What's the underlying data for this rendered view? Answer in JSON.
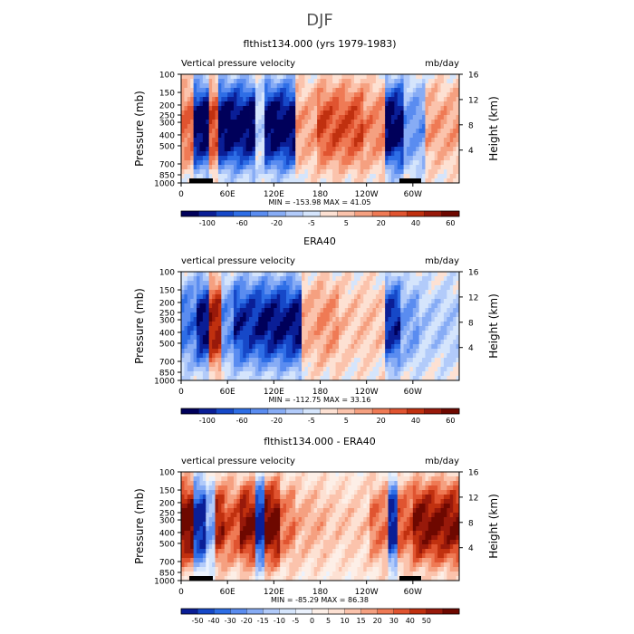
{
  "figure": {
    "title": "DJF"
  },
  "colors": {
    "palette_main": [
      "#00005a",
      "#0a1e96",
      "#1648c8",
      "#2e6ee6",
      "#5a8cf0",
      "#87acf5",
      "#b2cbfa",
      "#d5e5fc",
      "#fde1d3",
      "#fbc3ac",
      "#f5a080",
      "#ef7a55",
      "#e05430",
      "#c0300f",
      "#98190a",
      "#6e0800"
    ],
    "palette_diff": [
      "#0a1e96",
      "#1648c8",
      "#2e6ee6",
      "#5a8cf0",
      "#87acf5",
      "#b2cbfa",
      "#d5e5fc",
      "#ebf2fd",
      "#fdefe7",
      "#fde1d3",
      "#fbc3ac",
      "#f5a080",
      "#ef7a55",
      "#e05430",
      "#c0300f",
      "#98190a",
      "#6e0800"
    ]
  },
  "chart_data": [
    {
      "type": "heatmap",
      "title": "flthist134.000 (yrs 1979-1983)",
      "variable_label": "Vertical pressure velocity",
      "units_label": "mb/day",
      "ylabel": "Pressure (mb)",
      "ylabel_right": "Height (km)",
      "pressure_ticks": [
        "100",
        "150",
        "200",
        "250",
        "300",
        "400",
        "500",
        "700",
        "850",
        "1000"
      ],
      "height_ticks": [
        "4",
        "8",
        "12",
        "16"
      ],
      "lon_ticks": [
        "0",
        "60E",
        "120E",
        "180",
        "120W",
        "60W"
      ],
      "stats": "MIN = -153.98   MAX =  41.05",
      "colorbar_labels": [
        "-100",
        "-60",
        "-20",
        "-5",
        "5",
        "20",
        "40",
        "60"
      ],
      "field": {
        "scale": 1.0,
        "bands": [
          [
            0,
            15,
            0.5
          ],
          [
            15,
            38,
            -1
          ],
          [
            38,
            50,
            0.6
          ],
          [
            50,
            95,
            -1
          ],
          [
            95,
            108,
            -0.15
          ],
          [
            108,
            150,
            -1
          ],
          [
            150,
            178,
            0.3
          ],
          [
            178,
            238,
            0.6
          ],
          [
            238,
            265,
            0.4
          ],
          [
            265,
            288,
            -1
          ],
          [
            288,
            315,
            -0.4
          ],
          [
            315,
            360,
            0.3
          ]
        ]
      }
    },
    {
      "type": "heatmap",
      "title": "ERA40",
      "variable_label": "vertical pressure velocity",
      "units_label": "mb/day",
      "ylabel": "Pressure (mb)",
      "ylabel_right": "Height (km)",
      "pressure_ticks": [
        "100",
        "150",
        "200",
        "250",
        "300",
        "400",
        "500",
        "700",
        "850",
        "1000"
      ],
      "height_ticks": [
        "4",
        "8",
        "12",
        "16"
      ],
      "lon_ticks": [
        "0",
        "60E",
        "120E",
        "180",
        "120W",
        "60W"
      ],
      "stats": "MIN = -112.75   MAX =  33.16",
      "colorbar_labels": [
        "-100",
        "-60",
        "-20",
        "-5",
        "5",
        "20",
        "40",
        "60"
      ],
      "field": {
        "scale": 0.9,
        "bands": [
          [
            0,
            22,
            -0.6
          ],
          [
            22,
            38,
            -1
          ],
          [
            38,
            52,
            0.9
          ],
          [
            52,
            70,
            -0.5
          ],
          [
            70,
            100,
            -0.9
          ],
          [
            100,
            155,
            -1
          ],
          [
            155,
            178,
            0.3
          ],
          [
            178,
            205,
            0.4
          ],
          [
            205,
            265,
            0.2
          ],
          [
            265,
            285,
            -0.9
          ],
          [
            285,
            310,
            -0.4
          ],
          [
            310,
            360,
            -0.2
          ]
        ]
      }
    },
    {
      "type": "heatmap",
      "title": "flthist134.000 - ERA40",
      "variable_label": "vertical pressure velocity",
      "units_label": "mb/day",
      "ylabel": "Pressure (mb)",
      "ylabel_right": "Height (km)",
      "pressure_ticks": [
        "100",
        "150",
        "200",
        "250",
        "300",
        "400",
        "500",
        "700",
        "850",
        "1000"
      ],
      "height_ticks": [
        "4",
        "8",
        "12",
        "16"
      ],
      "lon_ticks": [
        "0",
        "60E",
        "120E",
        "180",
        "120W",
        "60W"
      ],
      "stats": "MIN = -85.29   MAX =  86.38",
      "colorbar_labels": [
        "-50",
        "-40",
        "-30",
        "-20",
        "-15",
        "-10",
        "-5",
        "0",
        "5",
        "10",
        "15",
        "20",
        "30",
        "40",
        "50"
      ],
      "field": {
        "scale": 1.0,
        "bands": [
          [
            0,
            18,
            1
          ],
          [
            18,
            32,
            -1
          ],
          [
            32,
            45,
            -0.5
          ],
          [
            45,
            58,
            0.8
          ],
          [
            58,
            78,
            0.6
          ],
          [
            78,
            98,
            0.9
          ],
          [
            98,
            108,
            -1
          ],
          [
            108,
            128,
            1
          ],
          [
            128,
            150,
            0.5
          ],
          [
            150,
            190,
            0.3
          ],
          [
            190,
            245,
            0.2
          ],
          [
            245,
            268,
            0.5
          ],
          [
            268,
            282,
            -1
          ],
          [
            282,
            300,
            0.6
          ],
          [
            300,
            360,
            0.9
          ]
        ]
      }
    }
  ]
}
